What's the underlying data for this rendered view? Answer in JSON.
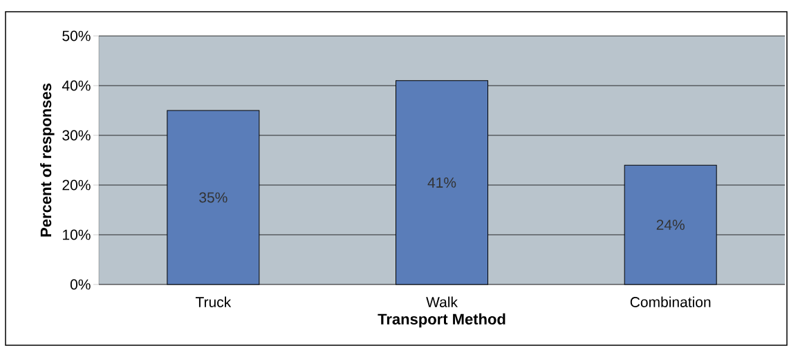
{
  "chart_data": {
    "type": "bar",
    "xlabel": "Transport Method",
    "ylabel": "Percent of responses",
    "categories": [
      "Truck",
      "Walk",
      "Combination"
    ],
    "values": [
      35,
      41,
      24
    ],
    "value_labels": [
      "35%",
      "41%",
      "24%"
    ],
    "color": "#5a7db9",
    "ylim": [
      0,
      50
    ],
    "yticks": [
      {
        "value": 0,
        "label": "0%"
      },
      {
        "value": 10,
        "label": "10%"
      },
      {
        "value": 20,
        "label": "20%"
      },
      {
        "value": 30,
        "label": "30%"
      },
      {
        "value": 40,
        "label": "40%"
      },
      {
        "value": 50,
        "label": "50%"
      }
    ],
    "grid": "y"
  }
}
